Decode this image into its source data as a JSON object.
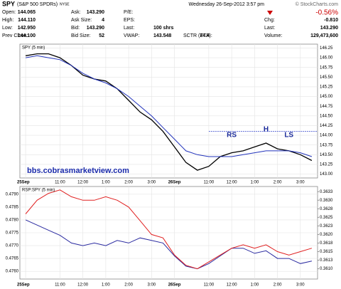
{
  "header": {
    "symbol": "SPY",
    "name": "(S&P 500 SPDRs)",
    "exchange": "NYSE",
    "datetime": "Wednesday  26-Sep-2012  3:57 pm",
    "source": "© StockCharts.com"
  },
  "quote": [
    [
      {
        "label": "Open:",
        "value": "144.065"
      },
      {
        "label": "Ask:",
        "value": "143.290"
      },
      {
        "label": "P/E:"
      }
    ],
    [
      {
        "label": "High:",
        "value": "144.110"
      },
      {
        "label": "Ask Size:",
        "value": "4"
      },
      {
        "label": "EPS:"
      }
    ],
    [
      {
        "label": "Low:",
        "value": "142.950"
      },
      {
        "label": "Bid:",
        "value": "143.290"
      },
      {
        "label": "Last:",
        "value": "100 shrs"
      }
    ],
    [
      {
        "label": "Prev Close:",
        "value": "144.100"
      },
      {
        "label": "Bid Size:",
        "value": "52"
      },
      {
        "label": "VWAP:",
        "value": "143.548"
      },
      {
        "label": "SCTR (ETF):",
        "value": "74.4"
      }
    ]
  ],
  "change_pct": "-0.56%",
  "quote_right": [
    {
      "label": "Chg:",
      "value": "-0.810"
    },
    {
      "label": "Last:",
      "value": "143.290"
    },
    {
      "label": "Volume:",
      "value": "129,473,600"
    }
  ],
  "chart_data": [
    {
      "type": "line",
      "legend": "SPY (5 min)",
      "categories": [
        "25Sep",
        null,
        null,
        "11:00",
        null,
        "12:00",
        null,
        "1:00",
        null,
        "2:00",
        null,
        "3:00",
        null,
        "26Sep",
        null,
        null,
        "11:00",
        null,
        "12:00",
        null,
        "1:00",
        null,
        "2:00",
        null,
        "3:00",
        null
      ],
      "series": [
        {
          "color": "#000000",
          "values": [
            146.05,
            146.1,
            146.1,
            146.0,
            145.8,
            145.55,
            145.45,
            145.4,
            145.2,
            144.9,
            144.6,
            144.4,
            144.1,
            143.7,
            143.3,
            143.1,
            143.2,
            143.45,
            143.55,
            143.6,
            143.7,
            143.8,
            143.65,
            143.6,
            143.5,
            143.35
          ]
        },
        {
          "color": "#2233bb",
          "values": [
            146.0,
            146.05,
            146.0,
            145.95,
            145.8,
            145.6,
            145.45,
            145.35,
            145.2,
            145.0,
            144.75,
            144.5,
            144.2,
            143.9,
            143.6,
            143.5,
            143.45,
            143.45,
            143.45,
            143.5,
            143.55,
            143.6,
            143.6,
            143.6,
            143.55,
            143.45
          ]
        }
      ],
      "reference_line": {
        "value": 144.1,
        "color": "#3344cc"
      },
      "annotations": [
        "RS",
        "H",
        "LS"
      ],
      "watermark": "bbs.cobrasmarketview.com",
      "ylim": [
        142.9,
        146.35
      ],
      "yticks": [
        {
          "value": 143,
          "label": "143.00"
        },
        {
          "value": 143.25,
          "label": "143.25"
        },
        {
          "value": 143.5,
          "label": "143.50"
        },
        {
          "value": 143.75,
          "label": "143.75"
        },
        {
          "value": 144,
          "label": "144.00"
        },
        {
          "value": 144.25,
          "label": "144.25"
        },
        {
          "value": 144.5,
          "label": "144.50"
        },
        {
          "value": 144.75,
          "label": "144.75"
        },
        {
          "value": 145,
          "label": "145.00"
        },
        {
          "value": 145.25,
          "label": "145.25"
        },
        {
          "value": 145.5,
          "label": "145.50"
        },
        {
          "value": 145.75,
          "label": "145.75"
        },
        {
          "value": 146,
          "label": "146.00"
        },
        {
          "value": 146.25,
          "label": "146.25"
        }
      ],
      "grid": true
    },
    {
      "type": "line",
      "legend": "RSP:SPY (5 min)",
      "categories": [
        "25Sep",
        null,
        null,
        "11:00",
        null,
        "12:00",
        null,
        "1:00",
        null,
        "2:00",
        null,
        "3:00",
        null,
        "26Sep",
        null,
        null,
        "11:00",
        null,
        "12:00",
        null,
        "1:00",
        null,
        "2:00",
        null,
        "3:00",
        null
      ],
      "series": [
        {
          "color": "#2a2aa0",
          "values": [
            0.478,
            0.4778,
            0.4776,
            0.4774,
            0.4771,
            0.477,
            0.4771,
            0.477,
            0.4772,
            0.4771,
            0.4773,
            0.4772,
            0.4771,
            0.4766,
            0.4762,
            0.4761,
            0.4763,
            0.4766,
            0.4769,
            0.4769,
            0.4767,
            0.4768,
            0.4765,
            0.4765,
            0.4763,
            0.4764
          ]
        },
        {
          "color": "#e02020",
          "axis": "y2",
          "values": [
            0.3626,
            0.363,
            0.3632,
            0.3633,
            0.3631,
            0.363,
            0.363,
            0.3631,
            0.363,
            0.3628,
            0.3624,
            0.362,
            0.3619,
            0.3614,
            0.3611,
            0.361,
            0.3612,
            0.3614,
            0.3616,
            0.3617,
            0.3616,
            0.3617,
            0.3615,
            0.3614,
            0.3615,
            0.3616
          ]
        }
      ],
      "ylim": [
        0.4757,
        0.4793
      ],
      "yticks": [
        {
          "value": 0.476,
          "label": "0.4760"
        },
        0.4765,
        {
          "value": 0.477,
          "label": "0.4770"
        },
        0.4775,
        {
          "value": 0.478,
          "label": "0.4780"
        },
        0.4785,
        {
          "value": 0.479,
          "label": "0.4790"
        }
      ],
      "y2lim": [
        0.3607,
        0.3634
      ],
      "y2ticks": [
        {
          "value": 0.361,
          "label": "0.3610"
        },
        {
          "value": 0.36125,
          "label": "0.3613"
        },
        0.3615,
        {
          "value": 0.36175,
          "label": "0.3618"
        },
        {
          "value": 0.362,
          "label": "0.3620"
        },
        {
          "value": 0.36225,
          "label": "0.3623"
        },
        0.3625,
        {
          "value": 0.36275,
          "label": "0.3628"
        },
        {
          "value": 0.363,
          "label": "0.3630"
        },
        {
          "value": 0.36325,
          "label": "0.3633"
        }
      ],
      "grid": true
    }
  ]
}
